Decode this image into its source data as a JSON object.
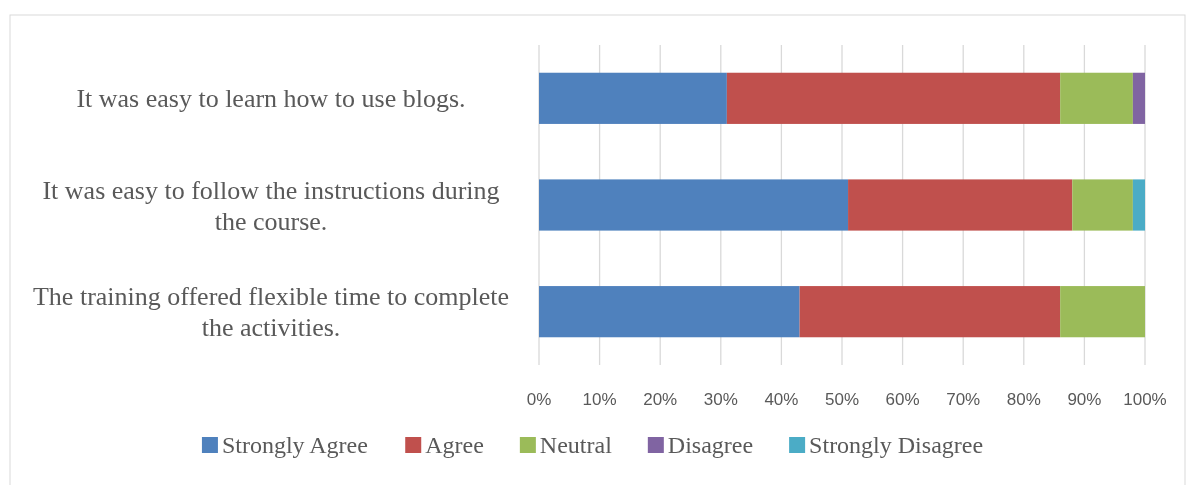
{
  "chart_data": {
    "type": "bar",
    "orientation": "horizontal",
    "stacked": true,
    "categories": [
      "It was easy to learn how to use blogs.",
      "It was easy to follow the instructions during the course.",
      "The training offered flexible time to complete the activities."
    ],
    "series": [
      {
        "name": "Strongly Agree",
        "color": "#4f81bd",
        "values": [
          31,
          51,
          43
        ]
      },
      {
        "name": "Agree",
        "color": "#c0504d",
        "values": [
          55,
          37,
          43
        ]
      },
      {
        "name": "Neutral",
        "color": "#9bbb59",
        "values": [
          12,
          10,
          14
        ]
      },
      {
        "name": "Disagree",
        "color": "#8064a2",
        "values": [
          2,
          0,
          0
        ]
      },
      {
        "name": "Strongly Disagree",
        "color": "#4bacc6",
        "values": [
          0,
          2,
          0
        ]
      }
    ],
    "xlim": [
      0,
      100
    ],
    "xticks": [
      {
        "value": 0,
        "label": "0%"
      },
      {
        "value": 10,
        "label": "10%"
      },
      {
        "value": 20,
        "label": "20%"
      },
      {
        "value": 30,
        "label": "30%"
      },
      {
        "value": 40,
        "label": "40%"
      },
      {
        "value": 50,
        "label": "50%"
      },
      {
        "value": 60,
        "label": "60%"
      },
      {
        "value": 70,
        "label": "70%"
      },
      {
        "value": 80,
        "label": "80%"
      },
      {
        "value": 90,
        "label": "90%"
      },
      {
        "value": 100,
        "label": "100%"
      }
    ],
    "grid": "x",
    "legend": "bottom"
  }
}
